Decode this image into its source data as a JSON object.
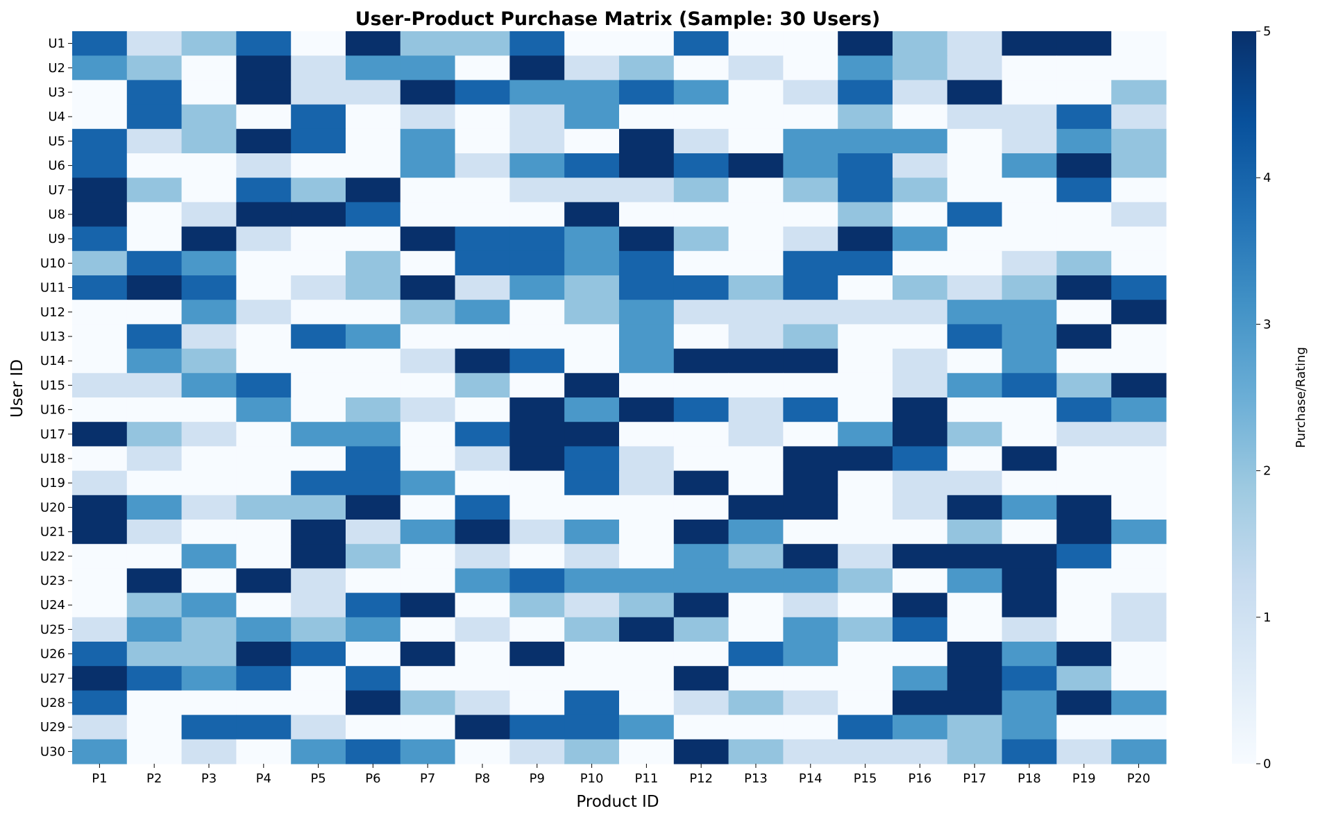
{
  "chart_data": {
    "type": "heatmap",
    "title": "User-Product Purchase Matrix (Sample: 30 Users)",
    "xlabel": "Product ID",
    "ylabel": "User ID",
    "colorbar_label": "Purchase/Rating",
    "colorbar_ticks": [
      "0",
      "1",
      "2",
      "3",
      "4",
      "5"
    ],
    "value_range": [
      0,
      5
    ],
    "colormap": [
      "#f7fbff",
      "#deebf7",
      "#c6dbef",
      "#9ecae1",
      "#6baed6",
      "#4292c6",
      "#2171b5",
      "#08519c",
      "#08306b"
    ],
    "columns": [
      "P1",
      "P2",
      "P3",
      "P4",
      "P5",
      "P6",
      "P7",
      "P8",
      "P9",
      "P10",
      "P11",
      "P12",
      "P13",
      "P14",
      "P15",
      "P16",
      "P17",
      "P18",
      "P19",
      "P20"
    ],
    "rows": [
      "U1",
      "U2",
      "U3",
      "U4",
      "U5",
      "U6",
      "U7",
      "U8",
      "U9",
      "U10",
      "U11",
      "U12",
      "U13",
      "U14",
      "U15",
      "U16",
      "U17",
      "U18",
      "U19",
      "U20",
      "U21",
      "U22",
      "U23",
      "U24",
      "U25",
      "U26",
      "U27",
      "U28",
      "U29",
      "U30"
    ],
    "values": [
      [
        4,
        1,
        2,
        4,
        0,
        5,
        2,
        2,
        4,
        0,
        0,
        4,
        0,
        0,
        5,
        2,
        1,
        5,
        5,
        0
      ],
      [
        3,
        2,
        0,
        5,
        1,
        3,
        3,
        0,
        5,
        1,
        2,
        0,
        1,
        0,
        3,
        2,
        1,
        0,
        0,
        0
      ],
      [
        0,
        4,
        0,
        5,
        1,
        1,
        5,
        4,
        3,
        3,
        4,
        3,
        0,
        1,
        4,
        1,
        5,
        0,
        0,
        2
      ],
      [
        0,
        4,
        2,
        0,
        4,
        0,
        1,
        0,
        1,
        3,
        0,
        0,
        0,
        0,
        2,
        0,
        1,
        1,
        4,
        1
      ],
      [
        4,
        1,
        2,
        5,
        4,
        0,
        3,
        0,
        1,
        0,
        5,
        1,
        0,
        3,
        3,
        3,
        0,
        1,
        3,
        2
      ],
      [
        4,
        0,
        0,
        1,
        0,
        0,
        3,
        1,
        3,
        4,
        5,
        4,
        5,
        3,
        4,
        1,
        0,
        3,
        5,
        2
      ],
      [
        5,
        2,
        0,
        4,
        2,
        5,
        0,
        0,
        1,
        1,
        1,
        2,
        0,
        2,
        4,
        2,
        0,
        0,
        4,
        0
      ],
      [
        5,
        0,
        1,
        5,
        5,
        4,
        0,
        0,
        0,
        5,
        0,
        0,
        0,
        0,
        2,
        0,
        4,
        0,
        0,
        1
      ],
      [
        4,
        0,
        5,
        1,
        0,
        0,
        5,
        4,
        4,
        3,
        5,
        2,
        0,
        1,
        5,
        3,
        0,
        0,
        0,
        0
      ],
      [
        2,
        4,
        3,
        0,
        0,
        2,
        0,
        4,
        4,
        3,
        4,
        0,
        0,
        4,
        4,
        0,
        0,
        1,
        2,
        0
      ],
      [
        4,
        5,
        4,
        0,
        1,
        2,
        5,
        1,
        3,
        2,
        4,
        4,
        2,
        4,
        0,
        2,
        1,
        2,
        5,
        4
      ],
      [
        0,
        0,
        3,
        1,
        0,
        0,
        2,
        3,
        0,
        2,
        3,
        1,
        1,
        1,
        1,
        1,
        3,
        3,
        0,
        5
      ],
      [
        0,
        4,
        1,
        0,
        4,
        3,
        0,
        0,
        0,
        0,
        3,
        0,
        1,
        2,
        0,
        0,
        4,
        3,
        5,
        0
      ],
      [
        0,
        3,
        2,
        0,
        0,
        0,
        1,
        5,
        4,
        0,
        3,
        5,
        5,
        5,
        0,
        1,
        0,
        3,
        0,
        0
      ],
      [
        1,
        1,
        3,
        4,
        0,
        0,
        0,
        2,
        0,
        5,
        0,
        0,
        0,
        0,
        0,
        1,
        3,
        4,
        2,
        5
      ],
      [
        0,
        0,
        0,
        3,
        0,
        2,
        1,
        0,
        5,
        3,
        5,
        4,
        1,
        4,
        0,
        5,
        0,
        0,
        4,
        3
      ],
      [
        5,
        2,
        1,
        0,
        3,
        3,
        0,
        4,
        5,
        5,
        0,
        0,
        1,
        0,
        3,
        5,
        2,
        0,
        1,
        1
      ],
      [
        0,
        1,
        0,
        0,
        0,
        4,
        0,
        1,
        5,
        4,
        1,
        0,
        0,
        5,
        5,
        4,
        0,
        5,
        0,
        0
      ],
      [
        1,
        0,
        0,
        0,
        4,
        4,
        3,
        0,
        0,
        4,
        1,
        5,
        0,
        5,
        0,
        1,
        1,
        0,
        0,
        0
      ],
      [
        5,
        3,
        1,
        2,
        2,
        5,
        0,
        4,
        0,
        0,
        0,
        0,
        5,
        5,
        0,
        1,
        5,
        3,
        5,
        0
      ],
      [
        5,
        1,
        0,
        0,
        5,
        1,
        3,
        5,
        1,
        3,
        0,
        5,
        3,
        0,
        0,
        0,
        2,
        0,
        5,
        3
      ],
      [
        0,
        0,
        3,
        0,
        5,
        2,
        0,
        1,
        0,
        1,
        0,
        3,
        2,
        5,
        1,
        5,
        5,
        5,
        4,
        0
      ],
      [
        0,
        5,
        0,
        5,
        1,
        0,
        0,
        3,
        4,
        3,
        3,
        3,
        3,
        3,
        2,
        0,
        3,
        5,
        0,
        0
      ],
      [
        0,
        2,
        3,
        0,
        1,
        4,
        5,
        0,
        2,
        1,
        2,
        5,
        0,
        1,
        0,
        5,
        0,
        5,
        0,
        1
      ],
      [
        1,
        3,
        2,
        3,
        2,
        3,
        0,
        1,
        0,
        2,
        5,
        2,
        0,
        3,
        2,
        4,
        0,
        1,
        0,
        1
      ],
      [
        4,
        2,
        2,
        5,
        4,
        0,
        5,
        0,
        5,
        0,
        0,
        0,
        4,
        3,
        0,
        0,
        5,
        3,
        5,
        0
      ],
      [
        5,
        4,
        3,
        4,
        0,
        4,
        0,
        0,
        0,
        0,
        0,
        5,
        0,
        0,
        0,
        3,
        5,
        4,
        2,
        0
      ],
      [
        4,
        0,
        0,
        0,
        0,
        5,
        2,
        1,
        0,
        4,
        0,
        1,
        2,
        1,
        0,
        5,
        5,
        3,
        5,
        3
      ],
      [
        1,
        0,
        4,
        4,
        1,
        0,
        0,
        5,
        4,
        4,
        3,
        0,
        0,
        0,
        4,
        3,
        2,
        3,
        0,
        0
      ],
      [
        3,
        0,
        1,
        0,
        3,
        4,
        3,
        0,
        1,
        2,
        0,
        5,
        2,
        1,
        1,
        1,
        2,
        4,
        1,
        3
      ]
    ]
  }
}
